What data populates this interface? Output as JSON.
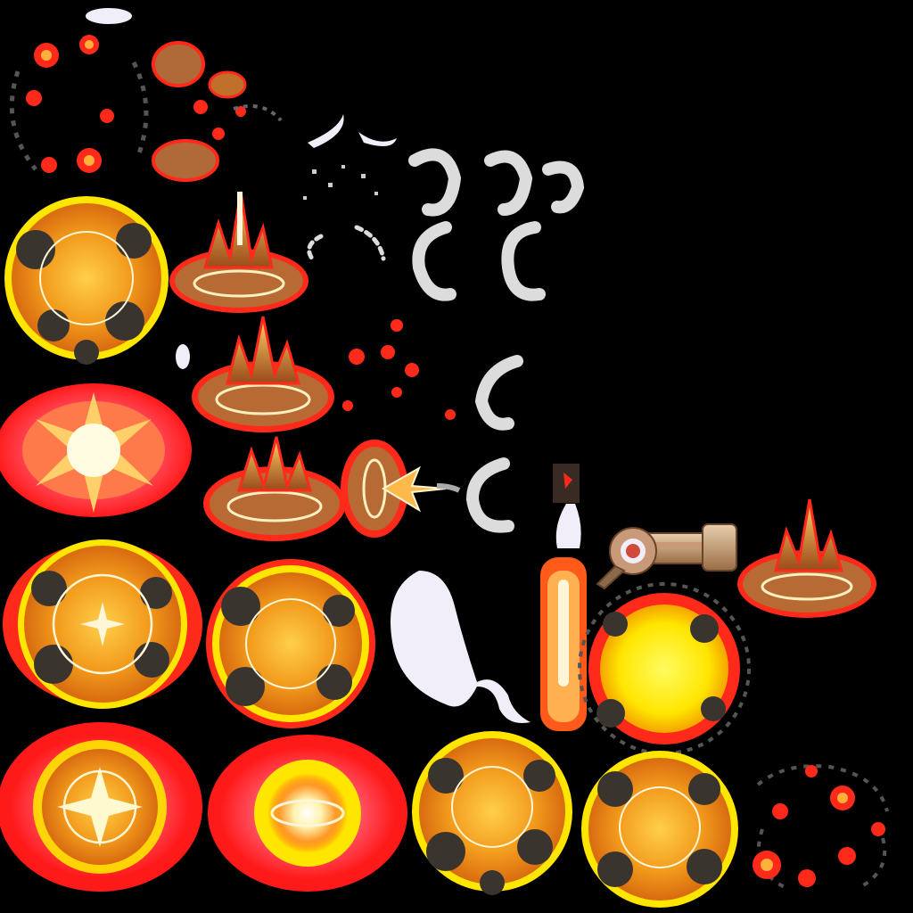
{
  "atlas": {
    "background": "#000000",
    "palette": {
      "glow_red": "#ff2a1a",
      "glow_pink": "#ff5a6e",
      "yellow": "#ffe600",
      "orange": "#f7a21a",
      "amber": "#e07a12",
      "smoke": "#3a342e",
      "white": "#fff6d8",
      "cloud": "#dcdcdc",
      "ghost": "#f1eefa",
      "copper": "#b06a3a",
      "brass": "#c8a47a"
    },
    "sprites": [
      {
        "name": "sparks-dispersing",
        "kind": "fragments"
      },
      {
        "name": "ember-cluster",
        "kind": "fragments"
      },
      {
        "name": "white-streaks",
        "kind": "trail"
      },
      {
        "name": "smoke-puffs",
        "kind": "smoke"
      },
      {
        "name": "explosion-smoke-ring",
        "kind": "explosion"
      },
      {
        "name": "ground-burst",
        "kind": "impact"
      },
      {
        "name": "flash-star",
        "kind": "flash"
      },
      {
        "name": "muzzle-flash",
        "kind": "flash"
      },
      {
        "name": "rocket-missile",
        "kind": "projectile"
      },
      {
        "name": "cannon-launcher",
        "kind": "weapon"
      },
      {
        "name": "ghost-trail",
        "kind": "trail"
      },
      {
        "name": "yellow-fireball",
        "kind": "explosion"
      },
      {
        "name": "fading-debris",
        "kind": "fragments"
      }
    ]
  }
}
